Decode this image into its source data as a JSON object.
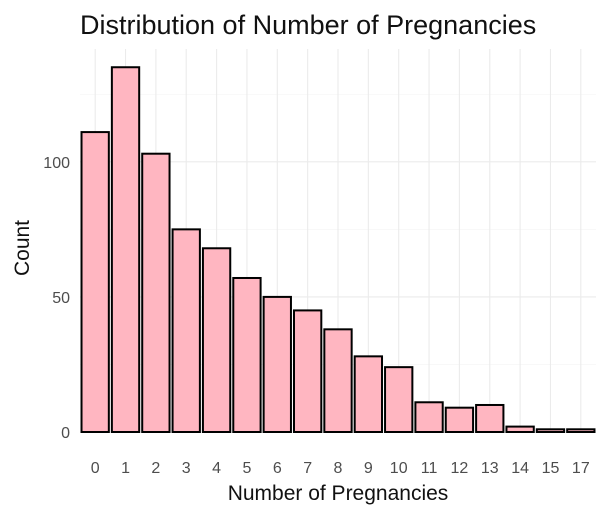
{
  "chart_data": {
    "type": "bar",
    "title": "Distribution of Number of Pregnancies",
    "xlabel": "Number of Pregnancies",
    "ylabel": "Count",
    "categories": [
      "0",
      "1",
      "2",
      "3",
      "4",
      "5",
      "6",
      "7",
      "8",
      "9",
      "10",
      "11",
      "12",
      "13",
      "14",
      "15",
      "17"
    ],
    "values": [
      111,
      135,
      103,
      75,
      68,
      57,
      50,
      45,
      38,
      28,
      24,
      11,
      9,
      10,
      2,
      1,
      1
    ],
    "y_ticks": [
      0,
      50,
      100
    ],
    "ylim": [
      0,
      141.75
    ],
    "grid": true,
    "bar_fill": "#ffb6c1",
    "bar_stroke": "#000000"
  }
}
